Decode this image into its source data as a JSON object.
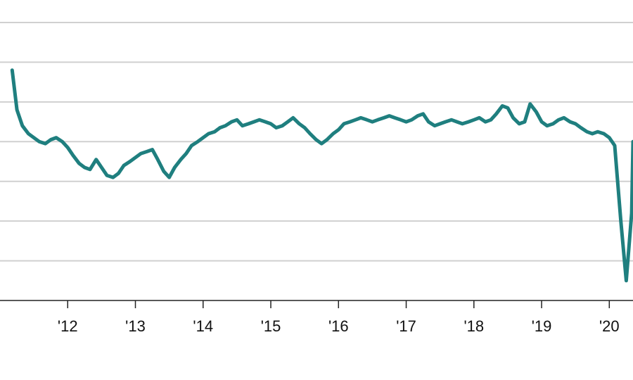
{
  "chart_data": {
    "type": "line",
    "title": "",
    "xlabel": "",
    "ylabel": "",
    "grid": true,
    "legend": "none",
    "color": "#1f7f7f",
    "x_ticks": [
      {
        "label": "'12",
        "x": 2012.0
      },
      {
        "label": "'13",
        "x": 2013.0
      },
      {
        "label": "'14",
        "x": 2014.0
      },
      {
        "label": "'15",
        "x": 2015.0
      },
      {
        "label": "'16",
        "x": 2016.0
      },
      {
        "label": "'17",
        "x": 2017.0
      },
      {
        "label": "'18",
        "x": 2018.0
      },
      {
        "label": "'19",
        "x": 2019.0
      },
      {
        "label": "'20",
        "x": 2020.0
      }
    ],
    "x_range": [
      2011.0,
      2020.35
    ],
    "y_range": [
      0,
      7
    ],
    "gridlines_y": [
      0,
      1,
      2,
      3,
      4,
      5,
      6,
      7
    ],
    "series": [
      {
        "points": [
          [
            2011.18,
            5.8
          ],
          [
            2011.25,
            4.8
          ],
          [
            2011.33,
            4.4
          ],
          [
            2011.42,
            4.2
          ],
          [
            2011.5,
            4.1
          ],
          [
            2011.58,
            4.0
          ],
          [
            2011.67,
            3.95
          ],
          [
            2011.75,
            4.05
          ],
          [
            2011.83,
            4.1
          ],
          [
            2011.92,
            4.0
          ],
          [
            2012.0,
            3.85
          ],
          [
            2012.08,
            3.65
          ],
          [
            2012.17,
            3.45
          ],
          [
            2012.25,
            3.35
          ],
          [
            2012.33,
            3.3
          ],
          [
            2012.42,
            3.55
          ],
          [
            2012.5,
            3.35
          ],
          [
            2012.58,
            3.15
          ],
          [
            2012.67,
            3.1
          ],
          [
            2012.75,
            3.2
          ],
          [
            2012.83,
            3.4
          ],
          [
            2012.92,
            3.5
          ],
          [
            2013.0,
            3.6
          ],
          [
            2013.08,
            3.7
          ],
          [
            2013.17,
            3.75
          ],
          [
            2013.25,
            3.8
          ],
          [
            2013.33,
            3.55
          ],
          [
            2013.42,
            3.25
          ],
          [
            2013.5,
            3.1
          ],
          [
            2013.58,
            3.35
          ],
          [
            2013.67,
            3.55
          ],
          [
            2013.75,
            3.7
          ],
          [
            2013.83,
            3.9
          ],
          [
            2013.92,
            4.0
          ],
          [
            2014.0,
            4.1
          ],
          [
            2014.08,
            4.2
          ],
          [
            2014.17,
            4.25
          ],
          [
            2014.25,
            4.35
          ],
          [
            2014.33,
            4.4
          ],
          [
            2014.42,
            4.5
          ],
          [
            2014.5,
            4.55
          ],
          [
            2014.58,
            4.4
          ],
          [
            2014.67,
            4.45
          ],
          [
            2014.75,
            4.5
          ],
          [
            2014.83,
            4.55
          ],
          [
            2014.92,
            4.5
          ],
          [
            2015.0,
            4.45
          ],
          [
            2015.08,
            4.35
          ],
          [
            2015.17,
            4.4
          ],
          [
            2015.25,
            4.5
          ],
          [
            2015.33,
            4.6
          ],
          [
            2015.42,
            4.45
          ],
          [
            2015.5,
            4.35
          ],
          [
            2015.58,
            4.2
          ],
          [
            2015.67,
            4.05
          ],
          [
            2015.75,
            3.95
          ],
          [
            2015.83,
            4.05
          ],
          [
            2015.92,
            4.2
          ],
          [
            2016.0,
            4.3
          ],
          [
            2016.08,
            4.45
          ],
          [
            2016.17,
            4.5
          ],
          [
            2016.25,
            4.55
          ],
          [
            2016.33,
            4.6
          ],
          [
            2016.42,
            4.55
          ],
          [
            2016.5,
            4.5
          ],
          [
            2016.58,
            4.55
          ],
          [
            2016.67,
            4.6
          ],
          [
            2016.75,
            4.65
          ],
          [
            2016.83,
            4.6
          ],
          [
            2016.92,
            4.55
          ],
          [
            2017.0,
            4.5
          ],
          [
            2017.08,
            4.55
          ],
          [
            2017.17,
            4.65
          ],
          [
            2017.25,
            4.7
          ],
          [
            2017.33,
            4.5
          ],
          [
            2017.42,
            4.4
          ],
          [
            2017.5,
            4.45
          ],
          [
            2017.58,
            4.5
          ],
          [
            2017.67,
            4.55
          ],
          [
            2017.75,
            4.5
          ],
          [
            2017.83,
            4.45
          ],
          [
            2017.92,
            4.5
          ],
          [
            2018.0,
            4.55
          ],
          [
            2018.08,
            4.6
          ],
          [
            2018.17,
            4.5
          ],
          [
            2018.25,
            4.55
          ],
          [
            2018.33,
            4.7
          ],
          [
            2018.42,
            4.9
          ],
          [
            2018.5,
            4.85
          ],
          [
            2018.58,
            4.6
          ],
          [
            2018.67,
            4.45
          ],
          [
            2018.75,
            4.5
          ],
          [
            2018.83,
            4.95
          ],
          [
            2018.92,
            4.75
          ],
          [
            2019.0,
            4.5
          ],
          [
            2019.08,
            4.4
          ],
          [
            2019.17,
            4.45
          ],
          [
            2019.25,
            4.55
          ],
          [
            2019.33,
            4.6
          ],
          [
            2019.42,
            4.5
          ],
          [
            2019.5,
            4.45
          ],
          [
            2019.58,
            4.35
          ],
          [
            2019.67,
            4.25
          ],
          [
            2019.75,
            4.2
          ],
          [
            2019.83,
            4.25
          ],
          [
            2019.92,
            4.2
          ],
          [
            2020.0,
            4.1
          ],
          [
            2020.08,
            3.9
          ],
          [
            2020.17,
            2.0
          ],
          [
            2020.25,
            0.5
          ],
          [
            2020.33,
            2.2
          ],
          [
            2020.35,
            4.0
          ]
        ]
      }
    ]
  }
}
